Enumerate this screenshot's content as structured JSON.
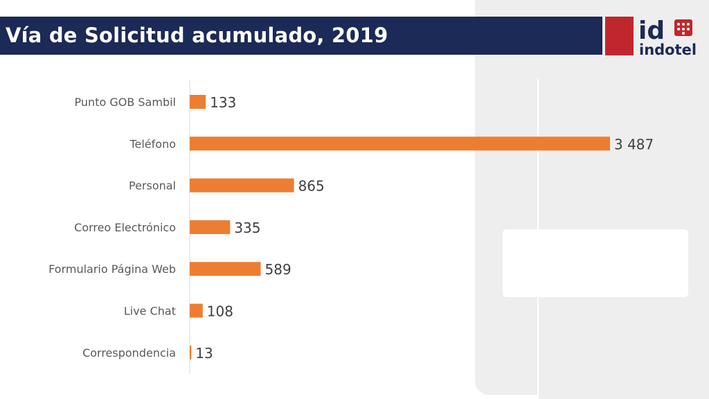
{
  "header": {
    "title": "Vía de Solicitud acumulado, 2019"
  },
  "logo": {
    "icon": "indotel-logo",
    "mark": "id",
    "name": "indotel",
    "accent": "#c0272d"
  },
  "colors": {
    "bar": "#ed7d31",
    "header": "#1b2a56",
    "label": "#595959",
    "value": "#404040"
  },
  "chart_data": {
    "type": "bar",
    "orientation": "horizontal",
    "title": "",
    "xlabel": "",
    "ylabel": "",
    "categories": [
      "Punto GOB Sambil",
      "Teléfono",
      "Personal",
      "Correo Electrónico",
      "Formulario Página Web",
      "Live Chat",
      "Correspondencia"
    ],
    "values": [
      133,
      3487,
      865,
      335,
      589,
      108,
      13
    ],
    "value_labels": [
      "133",
      "3 487",
      "865",
      "335",
      "589",
      "108",
      "13"
    ],
    "xlim": [
      0,
      3487
    ],
    "grid": false,
    "legend": "none"
  }
}
